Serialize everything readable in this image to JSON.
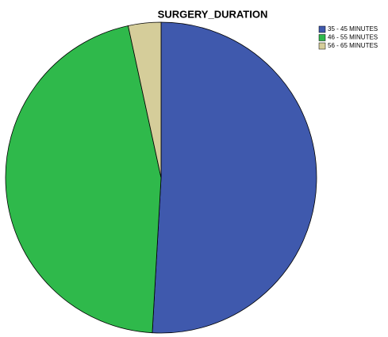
{
  "chart_data": {
    "type": "pie",
    "title": "SURGERY_DURATION",
    "categories": [
      "35 - 45 MINUTES",
      "46 - 55 MINUTES",
      "56 - 65 MINUTES"
    ],
    "values": [
      50.9,
      45.7,
      3.4
    ],
    "colors": [
      "#3f59ad",
      "#2fb94b",
      "#d5cd9a"
    ],
    "legend": "top-right"
  }
}
